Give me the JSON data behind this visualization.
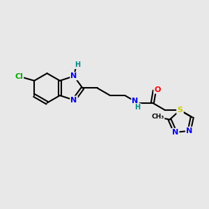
{
  "background_color": "#e8e8e8",
  "atom_colors": {
    "C": "#000000",
    "N": "#0000ee",
    "O": "#ff0000",
    "S": "#cccc00",
    "Cl": "#00aa00",
    "H": "#008888"
  },
  "bond_color": "#000000",
  "bond_lw": 1.5,
  "fig_width": 3.0,
  "fig_height": 3.0,
  "dpi": 100
}
